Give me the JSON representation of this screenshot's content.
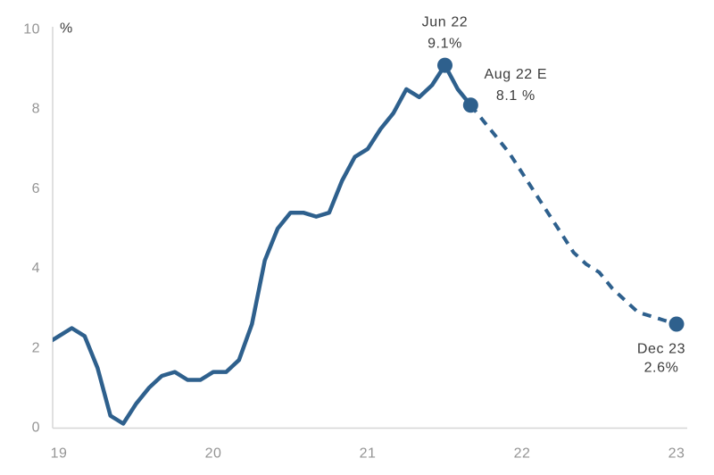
{
  "chart_data": {
    "type": "line",
    "unit_label": "%",
    "x_axis": {
      "tick_labels": [
        "19",
        "20",
        "21",
        "22",
        "23"
      ]
    },
    "y_axis": {
      "ticks": [
        0,
        2,
        4,
        6,
        8,
        10
      ],
      "range": [
        0,
        10
      ]
    },
    "series": [
      {
        "name": "actual",
        "style": "solid",
        "months": [
          "Nov 19",
          "Dec 19",
          "Jan 20",
          "Feb 20",
          "Mar 20",
          "Apr 20",
          "May 20",
          "Jun 20",
          "Jul 20",
          "Aug 20",
          "Sep 20",
          "Oct 20",
          "Nov 20",
          "Dec 20",
          "Jan 21",
          "Feb 21",
          "Mar 21",
          "Apr 21",
          "May 21",
          "Jun 21",
          "Jul 21",
          "Aug 21",
          "Sep 21",
          "Oct 21",
          "Nov 21",
          "Dec 21",
          "Jan 22",
          "Feb 22",
          "Mar 22",
          "Apr 22",
          "May 22",
          "Jun 22",
          "Jul 22",
          "Aug 22"
        ],
        "values": [
          2.1,
          2.3,
          2.5,
          2.3,
          1.5,
          0.3,
          0.1,
          0.6,
          1.0,
          1.3,
          1.4,
          1.2,
          1.2,
          1.4,
          1.4,
          1.7,
          2.6,
          4.2,
          5.0,
          5.4,
          5.4,
          5.3,
          5.4,
          6.2,
          6.8,
          7.0,
          7.5,
          7.9,
          8.5,
          8.3,
          8.6,
          9.1,
          8.5,
          8.1
        ]
      },
      {
        "name": "forecast",
        "style": "dashed",
        "months": [
          "Aug 22",
          "Sep 22",
          "Oct 22",
          "Nov 22",
          "Dec 22",
          "Jan 23",
          "Feb 23",
          "Mar 23",
          "Apr 23",
          "May 23",
          "Jun 23",
          "Jul 23",
          "Aug 23",
          "Sep 23",
          "Oct 23",
          "Nov 23",
          "Dec 23"
        ],
        "values": [
          8.1,
          7.7,
          7.3,
          6.9,
          6.4,
          5.9,
          5.4,
          4.9,
          4.4,
          4.1,
          3.9,
          3.5,
          3.2,
          2.9,
          2.8,
          2.7,
          2.6
        ]
      }
    ],
    "annotations": [
      {
        "line1": "Jun 22",
        "line2": "9.1%",
        "month": "Jun 22",
        "value": 9.1,
        "placement": "above"
      },
      {
        "line1": "Aug 22 E",
        "line2": "8.1 %",
        "month": "Aug 22",
        "value": 8.1,
        "placement": "upper-right"
      },
      {
        "line1": "Dec 23",
        "line2": "2.6%",
        "month": "Dec 23",
        "value": 2.6,
        "placement": "below-left"
      }
    ],
    "colors": {
      "line": "#2e608d",
      "tick_text": "#949494",
      "axis_line": "#d6d6d6",
      "annotation_text": "#3c3c3c",
      "background": "#ffffff"
    },
    "legend": "none",
    "grid": "off"
  }
}
